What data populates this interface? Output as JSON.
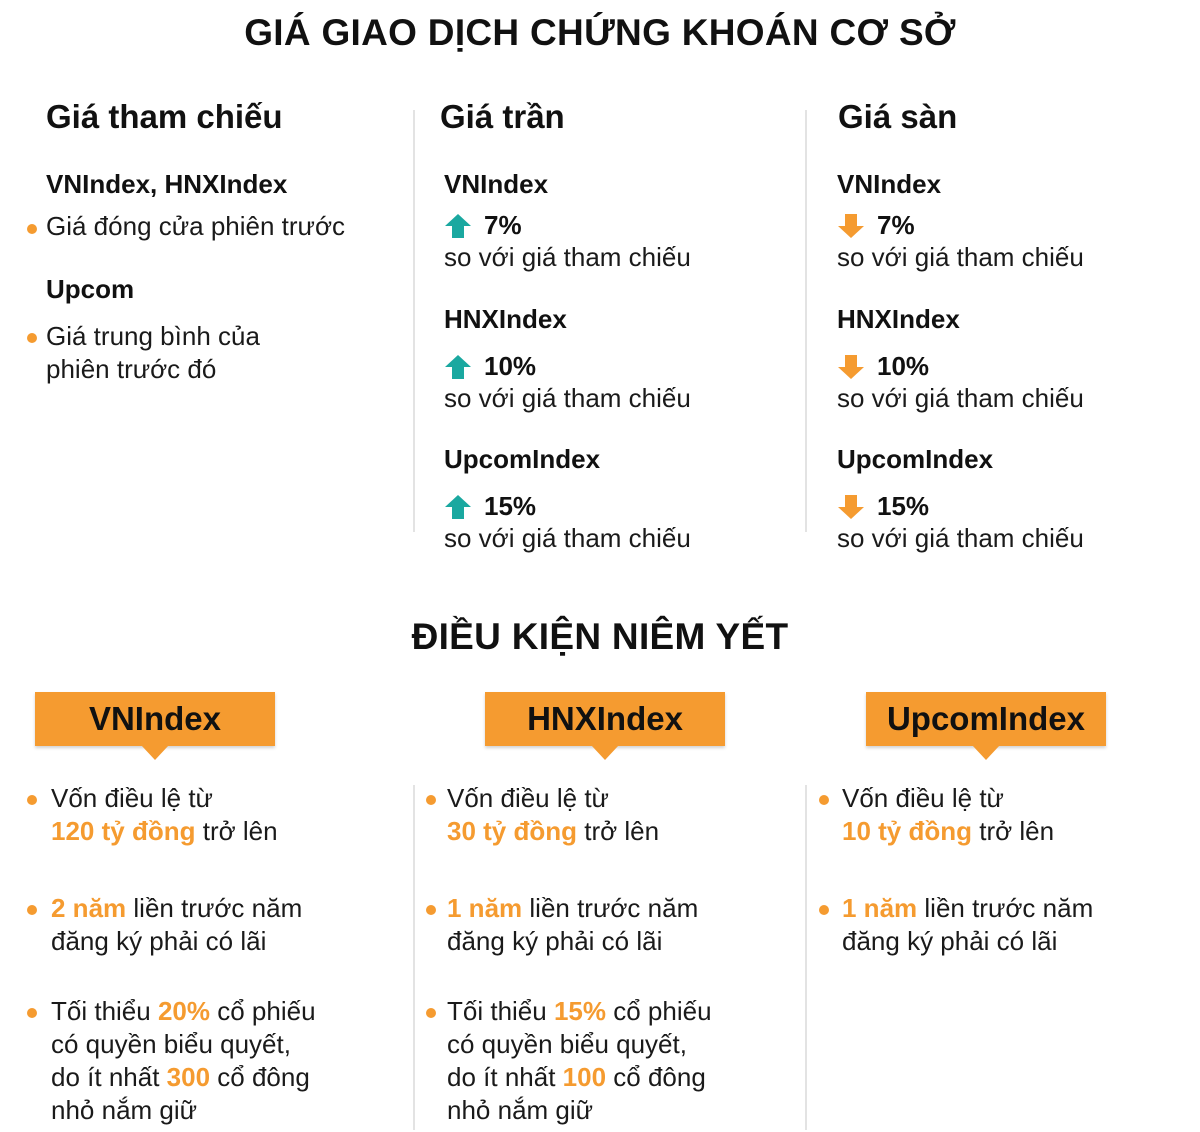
{
  "title_prices": "GIÁ GIAO DỊCH CHỨNG KHOÁN CƠ SỞ",
  "reference": {
    "heading": "Giá tham chiếu",
    "group1_label": "VNIndex, HNXIndex",
    "group1_bullet": "Giá đóng cửa phiên trước",
    "group2_label": "Upcom",
    "group2_bullet_line1": "Giá trung bình của",
    "group2_bullet_line2": "phiên trước đó"
  },
  "ceiling": {
    "heading": "Giá trần",
    "items": [
      {
        "index": "VNIndex",
        "pct": "7%",
        "note": "so với giá tham chiếu"
      },
      {
        "index": "HNXIndex",
        "pct": "10%",
        "note": "so với giá tham chiếu"
      },
      {
        "index": "UpcomIndex",
        "pct": "15%",
        "note": "so với giá tham chiếu"
      }
    ]
  },
  "floor": {
    "heading": "Giá sàn",
    "items": [
      {
        "index": "VNIndex",
        "pct": "7%",
        "note": "so với giá tham chiếu"
      },
      {
        "index": "HNXIndex",
        "pct": "10%",
        "note": "so với giá tham chiếu"
      },
      {
        "index": "UpcomIndex",
        "pct": "15%",
        "note": "so với giá tham chiếu"
      }
    ]
  },
  "title_listing": "ĐIỀU KIỆN NIÊM YẾT",
  "listing": [
    {
      "tag": "VNIndex",
      "capital_pre": "Vốn điều lệ từ",
      "capital_hl": "120 tỷ đồng",
      "capital_post": "trở lên",
      "profit_hl": "2 năm",
      "profit_post": "liền trước năm",
      "profit_line2": "đăng ký phải có lãi",
      "share_pre": "Tối thiểu",
      "share_hl": "20%",
      "share_post": "cổ phiếu",
      "share_line2": "có quyền biểu quyết,",
      "holder_pre": "do ít nhất",
      "holder_hl": "300",
      "holder_post": "cổ đông",
      "holder_line2": "nhỏ nắm giữ"
    },
    {
      "tag": "HNXIndex",
      "capital_pre": "Vốn điều lệ từ",
      "capital_hl": "30 tỷ đồng",
      "capital_post": "trở lên",
      "profit_hl": "1 năm",
      "profit_post": "liền trước năm",
      "profit_line2": "đăng ký phải có lãi",
      "share_pre": "Tối thiểu",
      "share_hl": "15%",
      "share_post": "cổ phiếu",
      "share_line2": "có quyền biểu quyết,",
      "holder_pre": "do ít nhất",
      "holder_hl": "100",
      "holder_post": "cổ đông",
      "holder_line2": "nhỏ nắm giữ"
    },
    {
      "tag": "UpcomIndex",
      "capital_pre": "Vốn điều lệ từ",
      "capital_hl": "10 tỷ đồng",
      "capital_post": "trở lên",
      "profit_hl": "1 năm",
      "profit_post": "liền trước năm",
      "profit_line2": "đăng ký phải có lãi"
    }
  ],
  "colors": {
    "accent": "#f59b30",
    "up": "#1aa8a0",
    "down": "#f59b30",
    "divider": "#e3e3e3"
  },
  "icons": {
    "up": "arrow-up-icon",
    "down": "arrow-down-icon",
    "bullet": "bullet-dot-icon"
  }
}
